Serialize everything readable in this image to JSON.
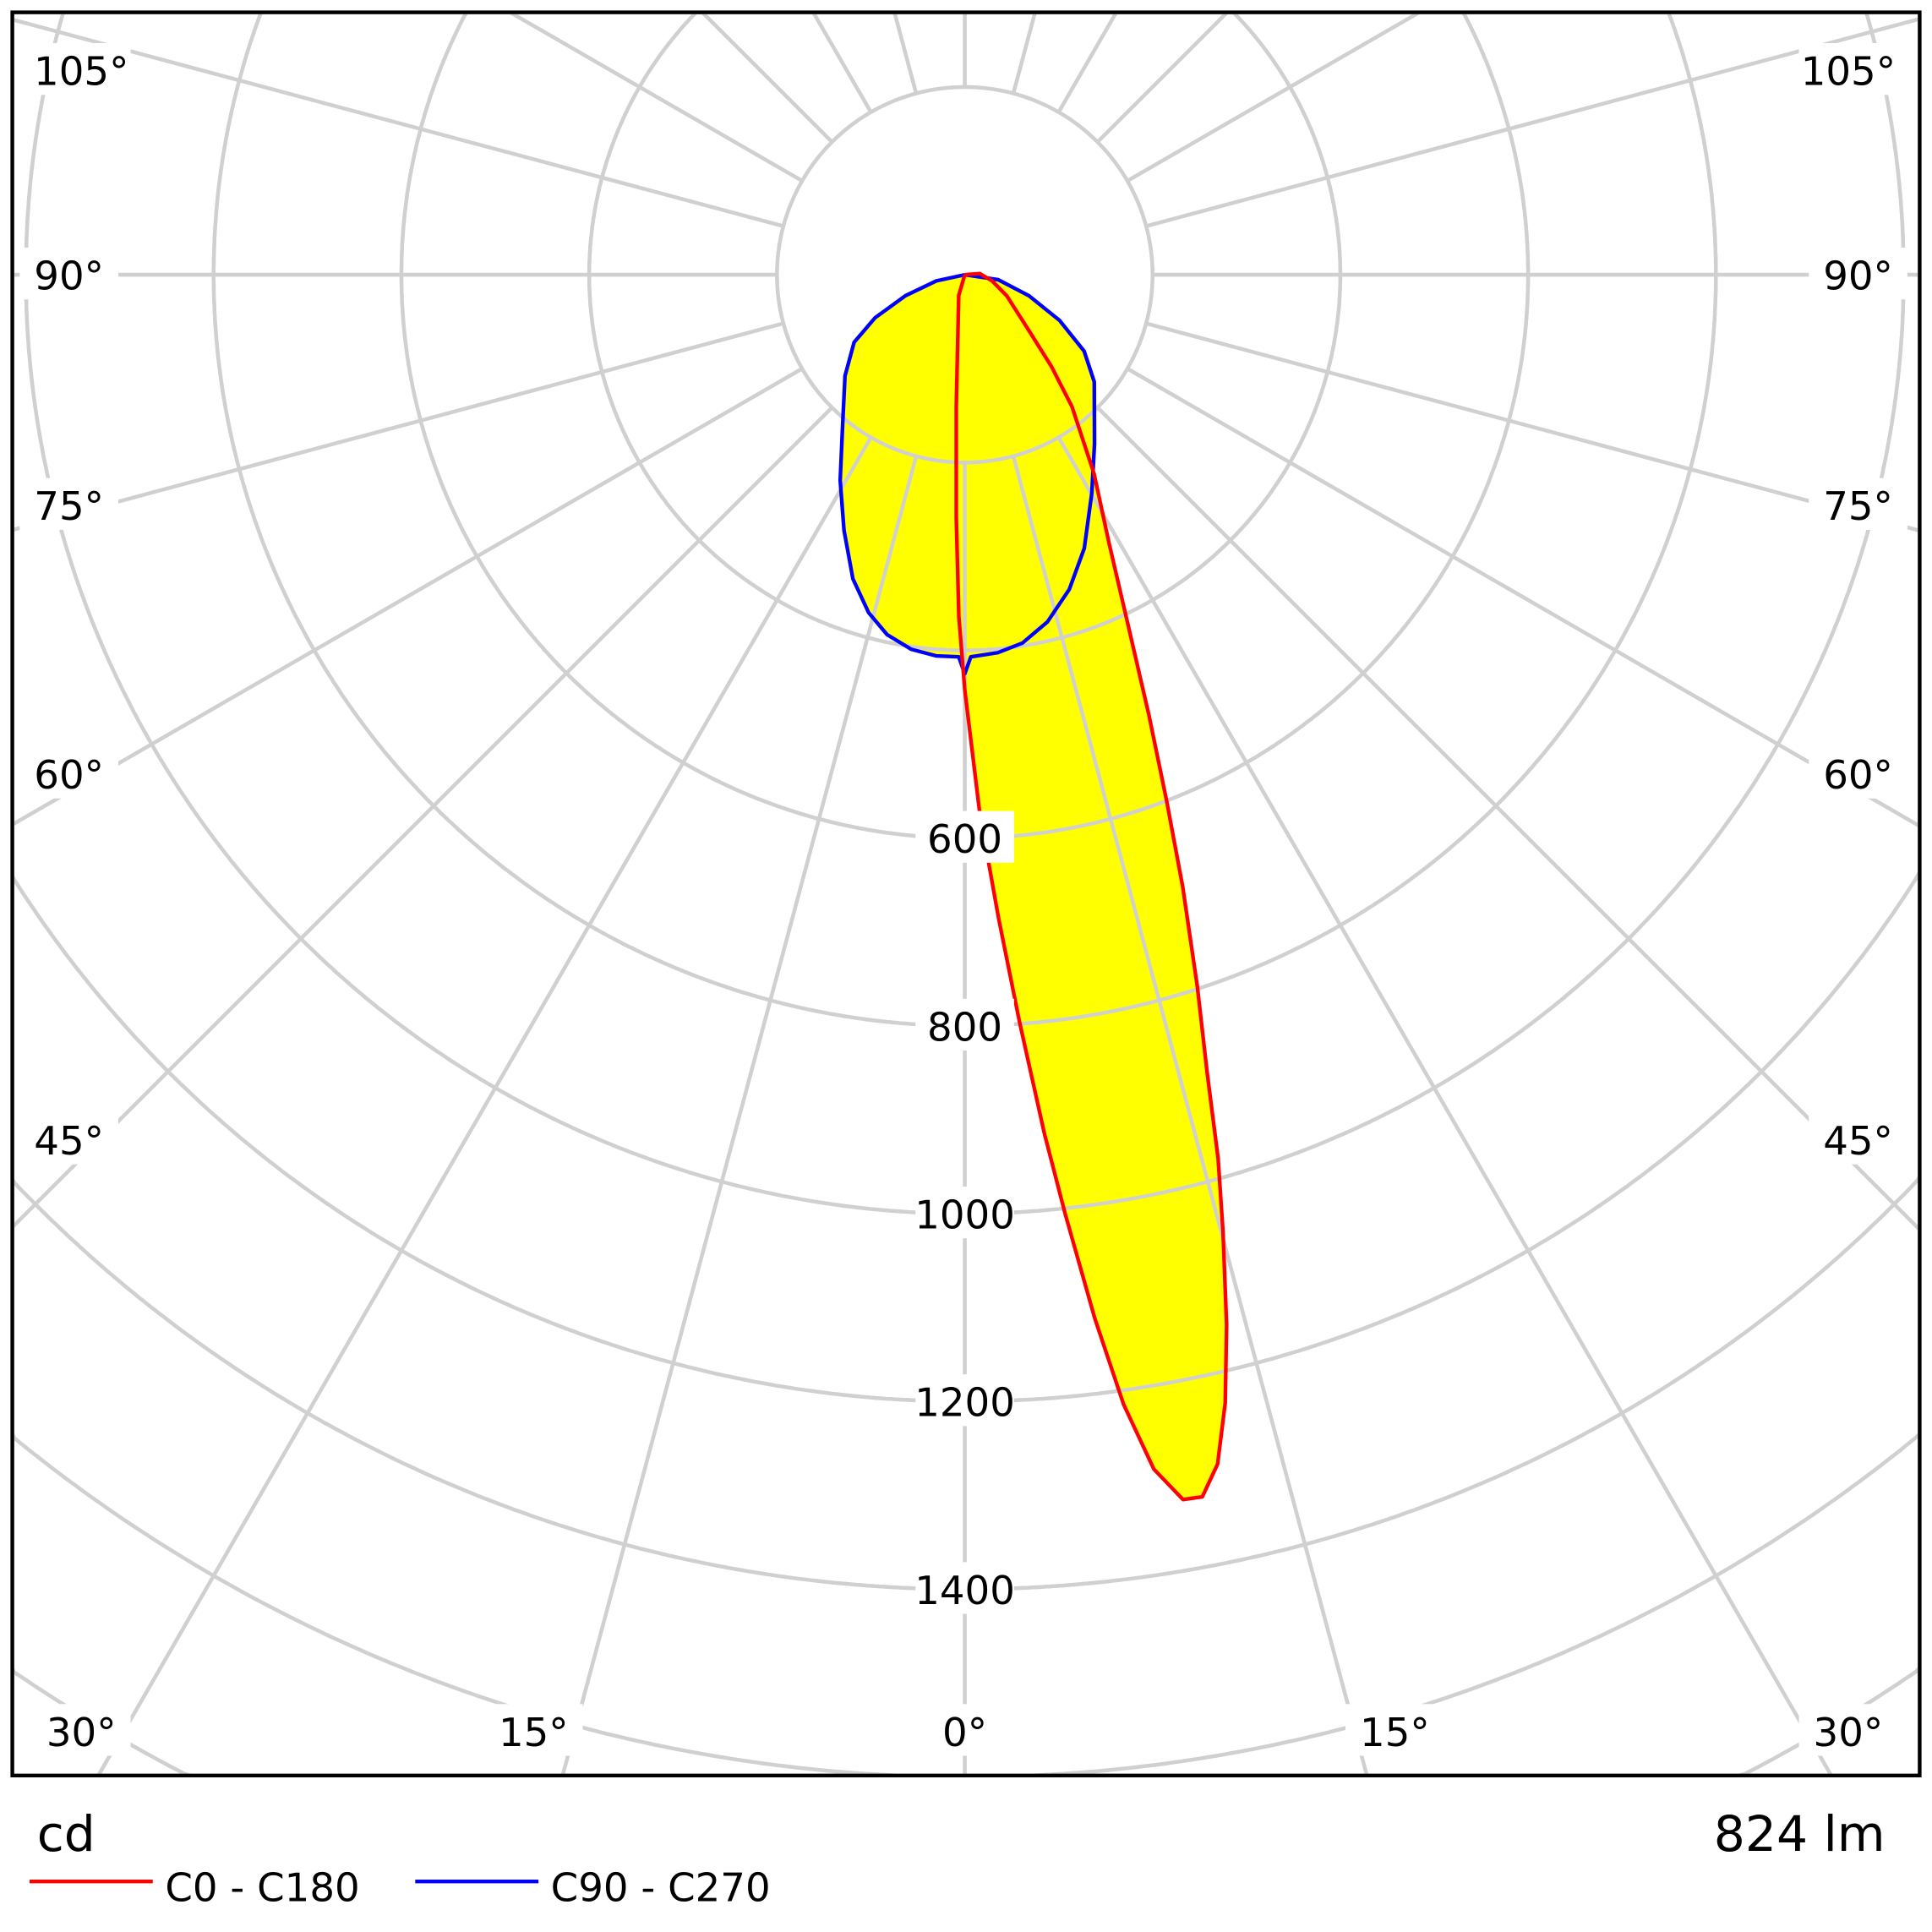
{
  "chart_data": {
    "type": "polar",
    "unit_label": "cd",
    "flux_label": "824 lm",
    "radial_max": 1400,
    "radial_step": 200,
    "radial_tick_labels": [
      "600",
      "800",
      "1000",
      "1200",
      "1400"
    ],
    "radial_tick_values": [
      600,
      800,
      1000,
      1200,
      1400
    ],
    "angle_step": 15,
    "angle_labels": {
      "left": [
        "105°",
        "90°",
        "75°",
        "60°",
        "45°",
        "30°",
        "15°"
      ],
      "center": "0°",
      "right": [
        "15°",
        "30°",
        "45°",
        "60°",
        "75°",
        "90°",
        "105°"
      ]
    },
    "grid": true,
    "fill_color": "#ffff00",
    "grid_color": "#d0d0d0",
    "series": [
      {
        "name": "C0 - C180",
        "color": "#ff0000",
        "points": [
          [
            -16.4,
            23
          ],
          [
            -3.7,
            141
          ],
          [
            -2.0,
            259
          ],
          [
            -1.0,
            364
          ],
          [
            0,
            442
          ],
          [
            1.6,
            574
          ],
          [
            3.0,
            686
          ],
          [
            4.2,
            799
          ],
          [
            5.3,
            919
          ],
          [
            6.1,
            1006
          ],
          [
            7.1,
            1120
          ],
          [
            8.0,
            1215
          ],
          [
            9.0,
            1288
          ],
          [
            10.1,
            1325
          ],
          [
            11.0,
            1326
          ],
          [
            12.0,
            1295
          ],
          [
            13.0,
            1233
          ],
          [
            14.0,
            1153
          ],
          [
            15.1,
            1056
          ],
          [
            16.0,
            979
          ],
          [
            16.9,
            888
          ],
          [
            18.1,
            797
          ],
          [
            19.6,
            692
          ],
          [
            21.0,
            600
          ],
          [
            22.7,
            508
          ],
          [
            25.1,
            408
          ],
          [
            28.3,
            324
          ],
          [
            33.0,
            253
          ],
          [
            39.1,
            181
          ],
          [
            43.4,
            134
          ],
          [
            49.1,
            90
          ],
          [
            63.4,
            50
          ],
          [
            77.2,
            30
          ],
          [
            94.8,
            16
          ]
        ]
      },
      {
        "name": "C90 - C270",
        "color": "#0000ff",
        "points": [
          [
            -77.7,
            31
          ],
          [
            -70.5,
            67
          ],
          [
            -64.4,
            106
          ],
          [
            -58.6,
            138
          ],
          [
            -49.8,
            167
          ],
          [
            -40.2,
            201
          ],
          [
            -31.2,
            256
          ],
          [
            -25.3,
            301
          ],
          [
            -20.2,
            345
          ],
          [
            -15.9,
            374
          ],
          [
            -12.2,
            392
          ],
          [
            -8.1,
            403
          ],
          [
            -4.3,
            407
          ],
          [
            -0.9,
            407
          ],
          [
            0,
            425
          ],
          [
            0.9,
            407
          ],
          [
            5.0,
            404
          ],
          [
            8.9,
            397
          ],
          [
            13.4,
            380
          ],
          [
            18.4,
            353
          ],
          [
            23.6,
            318
          ],
          [
            30.2,
            269
          ],
          [
            37.5,
            227
          ],
          [
            50.4,
            179
          ],
          [
            57.4,
            151
          ],
          [
            64.3,
            112
          ],
          [
            71.9,
            72
          ],
          [
            81.6,
            36
          ]
        ]
      }
    ]
  }
}
